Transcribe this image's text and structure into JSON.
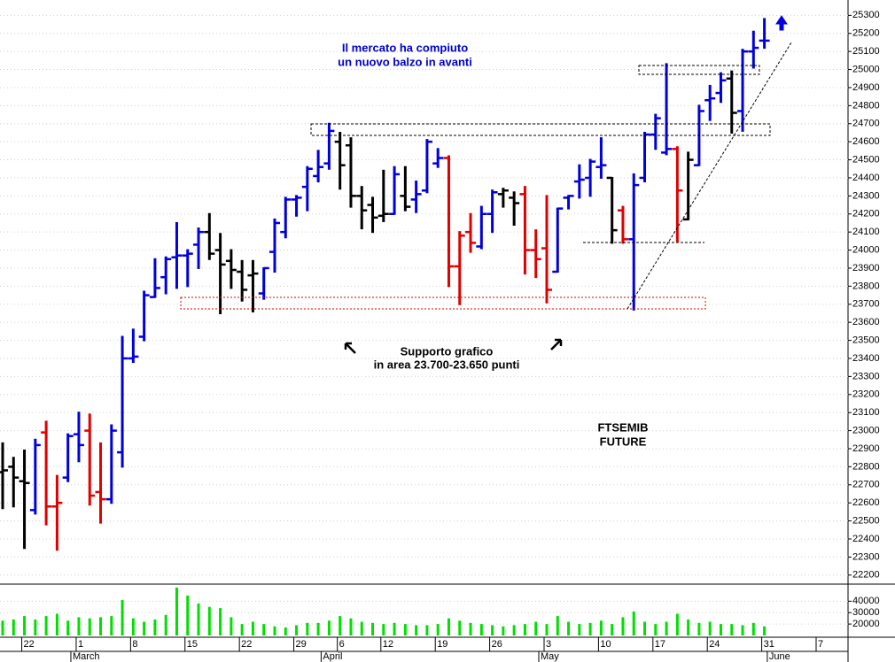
{
  "chart_data": [
    {
      "type": "ohlc",
      "annotations": [
        "Il mercato ha compiuto",
        "un nuovo balzo in avanti",
        "Supporto grafico",
        "in area 23.700-23.650 punti",
        "FTSEMIB",
        "FUTURE"
      ],
      "categories": [
        null,
        null,
        "22",
        null,
        null,
        null,
        null,
        "1",
        null,
        null,
        null,
        null,
        "8",
        null,
        null,
        null,
        null,
        "15",
        null,
        null,
        null,
        null,
        "22",
        null,
        null,
        null,
        null,
        "29",
        null,
        null,
        null,
        "6",
        null,
        null,
        null,
        "12",
        null,
        null,
        null,
        null,
        "19",
        null,
        null,
        null,
        null,
        "26",
        null,
        null,
        null,
        null,
        "3",
        null,
        null,
        null,
        null,
        "10",
        null,
        null,
        null,
        null,
        "17",
        null,
        null,
        null,
        null,
        "24",
        null,
        null,
        null,
        null,
        "31",
        null,
        null,
        null,
        null,
        "7",
        null,
        null,
        null
      ],
      "months": [
        null,
        null,
        null,
        null,
        null,
        null,
        null,
        "March",
        null,
        null,
        null,
        null,
        null,
        null,
        null,
        null,
        null,
        null,
        null,
        null,
        null,
        null,
        null,
        null,
        null,
        null,
        null,
        null,
        null,
        null,
        "April",
        null,
        null,
        null,
        null,
        null,
        null,
        null,
        null,
        null,
        null,
        null,
        null,
        null,
        null,
        null,
        null,
        null,
        null,
        null,
        "May",
        null,
        null,
        null,
        null,
        null,
        null,
        null,
        null,
        null,
        null,
        null,
        null,
        null,
        null,
        null,
        null,
        null,
        null,
        null,
        null,
        "June",
        null,
        null,
        null,
        null,
        null,
        null,
        null
      ],
      "open": [
        22770,
        22800,
        22720,
        22560,
        22990,
        22580,
        22740,
        22980,
        23000,
        22660,
        22620,
        22880,
        23400,
        23520,
        23740,
        23850,
        23960,
        23970,
        24030,
        24100,
        24000,
        23940,
        23880,
        23860,
        23760,
        23990,
        24100,
        24280,
        24350,
        24410,
        24480,
        24600,
        24580,
        24300,
        24250,
        24190,
        24200,
        24300,
        24280,
        24330,
        24480,
        24510,
        23910,
        24100,
        24020,
        24200,
        24310,
        24290,
        24310,
        24000,
        24010,
        23880,
        24290,
        24380,
        24400,
        24460,
        24400,
        24220,
        24060,
        24400,
        24640,
        24540,
        24560,
        24170,
        24470,
        24830,
        24870,
        24950,
        24770,
        25100,
        25160,
        null,
        null,
        null,
        null,
        null,
        null,
        null,
        null
      ],
      "high": [
        22930,
        22850,
        22890,
        22950,
        23050,
        22750,
        22980,
        23100,
        23090,
        22930,
        23030,
        23520,
        23560,
        23770,
        23950,
        23960,
        24150,
        24000,
        24120,
        24200,
        24090,
        24000,
        23940,
        23940,
        23900,
        24170,
        24290,
        24300,
        24460,
        24550,
        24700,
        24650,
        24620,
        24350,
        24290,
        24440,
        24460,
        24460,
        24380,
        24610,
        24560,
        24520,
        24100,
        24200,
        24240,
        24330,
        24340,
        24320,
        24350,
        24110,
        24300,
        24230,
        24300,
        24470,
        24500,
        24620,
        24400,
        24240,
        24420,
        24650,
        24750,
        25030,
        24570,
        24540,
        24800,
        24910,
        24980,
        24990,
        25110,
        25210,
        25280,
        null,
        null,
        null,
        null,
        null,
        null,
        null,
        null
      ],
      "low": [
        22570,
        22580,
        22350,
        22540,
        22480,
        22340,
        22720,
        22830,
        22590,
        22490,
        22600,
        22800,
        23380,
        23500,
        23740,
        23760,
        23790,
        23800,
        23900,
        23950,
        23650,
        23790,
        23720,
        23660,
        23730,
        23880,
        24070,
        24190,
        24220,
        24380,
        24450,
        24340,
        24240,
        24120,
        24100,
        24160,
        24200,
        24220,
        24210,
        24320,
        24460,
        23800,
        23700,
        23990,
        24010,
        24100,
        24240,
        24140,
        23870,
        23850,
        23710,
        23880,
        24230,
        24290,
        24300,
        24400,
        24040,
        24040,
        23670,
        24380,
        24560,
        24530,
        24050,
        24170,
        24470,
        24720,
        24820,
        24650,
        24660,
        25010,
        25120,
        null,
        null,
        null,
        null,
        null,
        null,
        null,
        null
      ],
      "close": [
        22780,
        22740,
        22710,
        22920,
        22580,
        22600,
        22970,
        22920,
        22640,
        22620,
        23000,
        23400,
        23410,
        23750,
        23790,
        23950,
        23970,
        23980,
        24100,
        23980,
        23920,
        23890,
        23780,
        23870,
        23900,
        24150,
        24280,
        24290,
        24450,
        24460,
        24660,
        24470,
        24300,
        24220,
        24180,
        24200,
        24420,
        24240,
        24310,
        24600,
        24510,
        23910,
        24080,
        24040,
        24200,
        24320,
        24330,
        24260,
        24000,
        23950,
        23780,
        24230,
        24300,
        24390,
        24490,
        24470,
        24110,
        24060,
        24360,
        24640,
        24730,
        24560,
        24330,
        24500,
        24770,
        24840,
        24940,
        24760,
        25100,
        25120,
        25160,
        null,
        null,
        null,
        null,
        null,
        null,
        null,
        null
      ],
      "colors": [
        "#000000",
        "#000000",
        "#000000",
        "#0000dd",
        "#e00000",
        "#e00000",
        "#0000dd",
        "#0000dd",
        "#e00000",
        "#e00000",
        "#0000dd",
        "#0000dd",
        "#0000dd",
        "#0000dd",
        "#0000dd",
        "#0000dd",
        "#0000dd",
        "#0000dd",
        "#0000dd",
        "#000000",
        "#000000",
        "#000000",
        "#000000",
        "#000000",
        "#0000dd",
        "#0000dd",
        "#0000dd",
        "#0000dd",
        "#0000dd",
        "#0000dd",
        "#0000dd",
        "#000000",
        "#000000",
        "#000000",
        "#000000",
        "#000000",
        "#0000dd",
        "#000000",
        "#0000dd",
        "#0000dd",
        "#0000dd",
        "#e00000",
        "#e00000",
        "#e00000",
        "#0000dd",
        "#0000dd",
        "#000000",
        "#000000",
        "#e00000",
        "#e00000",
        "#e00000",
        "#0000dd",
        "#0000dd",
        "#0000dd",
        "#0000dd",
        "#0000dd",
        "#000000",
        "#e00000",
        "#0000dd",
        "#0000dd",
        "#0000dd",
        "#0000dd",
        "#e00000",
        "#000000",
        "#0000dd",
        "#0000dd",
        "#0000dd",
        "#000000",
        "#0000dd",
        "#0000dd",
        "#0000dd",
        null,
        null,
        null,
        null,
        null,
        null,
        null,
        null
      ],
      "ylim": [
        22150,
        25385
      ],
      "yticks": [
        22200,
        22300,
        22400,
        22500,
        22600,
        22700,
        22800,
        22900,
        23000,
        23100,
        23200,
        23300,
        23400,
        23500,
        23600,
        23700,
        23800,
        23900,
        24000,
        24100,
        24200,
        24300,
        24400,
        24500,
        24600,
        24700,
        24800,
        24900,
        25000,
        25100,
        25200,
        25300
      ],
      "grid": true
    },
    {
      "type": "bar",
      "color": "#00e000",
      "values": [
        23000,
        24000,
        27000,
        24000,
        27000,
        29000,
        23000,
        26000,
        25000,
        26000,
        27000,
        41000,
        25000,
        22000,
        24000,
        28000,
        52000,
        45000,
        38000,
        35000,
        34000,
        26000,
        20000,
        22000,
        20000,
        18000,
        17000,
        19000,
        21000,
        21000,
        23000,
        27000,
        25000,
        22000,
        21000,
        20000,
        21000,
        20000,
        19000,
        19000,
        20000,
        25000,
        23000,
        21000,
        20000,
        19000,
        18000,
        19000,
        20000,
        22000,
        20000,
        27000,
        22000,
        20000,
        21000,
        23000,
        20000,
        26000,
        31000,
        22000,
        20000,
        22000,
        29000,
        24000,
        21000,
        22000,
        20000,
        20000,
        19000,
        21000,
        18000,
        null,
        null,
        null,
        null,
        null,
        null,
        null,
        null
      ],
      "ylim": [
        10000,
        55000
      ],
      "yticks": [
        20000,
        30000,
        40000
      ]
    }
  ]
}
